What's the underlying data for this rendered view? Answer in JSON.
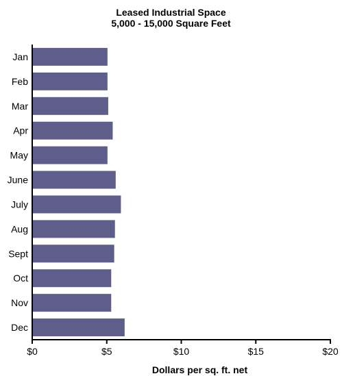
{
  "chart_data": {
    "type": "bar",
    "orientation": "horizontal",
    "title": "Leased Industrial Space",
    "subtitle": "5,000 - 15,000 Square Feet",
    "categories": [
      "Jan",
      "Feb",
      "Mar",
      "Apr",
      "May",
      "June",
      "July",
      "Aug",
      "Sept",
      "Oct",
      "Nov",
      "Dec"
    ],
    "values": [
      5.05,
      5.05,
      5.1,
      5.4,
      5.05,
      5.6,
      5.95,
      5.55,
      5.5,
      5.3,
      5.3,
      6.2
    ],
    "xlabel": "Dollars per sq. ft. net",
    "ylabel": "",
    "xlim": [
      0,
      20
    ],
    "xticks": [
      0,
      5,
      10,
      15,
      20
    ],
    "xtick_labels": [
      "$0",
      "$5",
      "$10",
      "$15",
      "$20"
    ],
    "grid": false,
    "bar_color": "#5f5e8a"
  }
}
